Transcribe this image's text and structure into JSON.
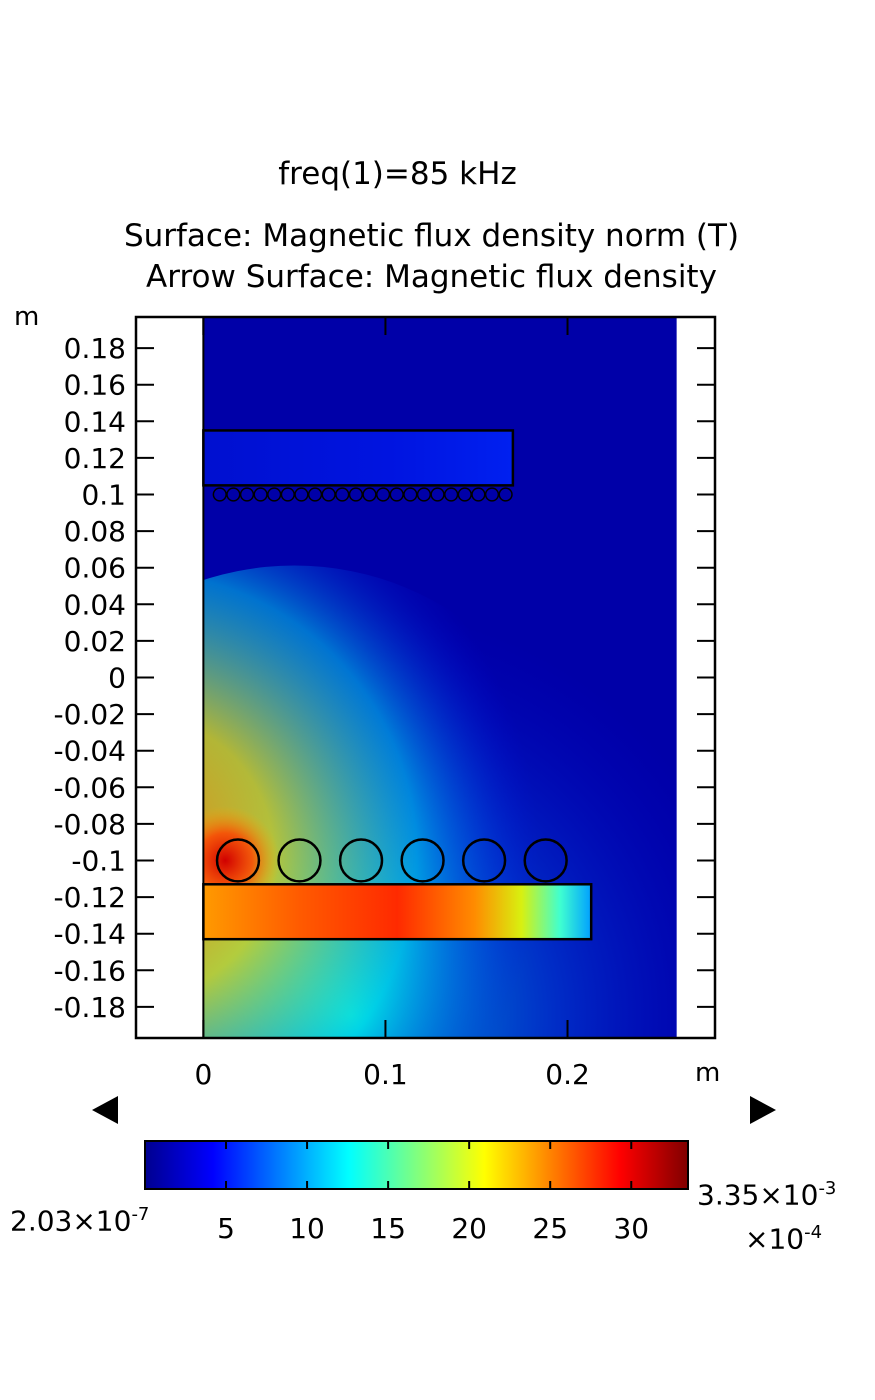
{
  "header": {
    "param_line": "freq(1)=85 kHz",
    "title_line1": "Surface: Magnetic flux density norm (T)",
    "title_line2": "Arrow Surface: Magnetic flux density"
  },
  "colors": {
    "field_low": "#0000A8",
    "field_high": "#800000",
    "colormap": "Rainbow (jet)"
  },
  "chart_data": {
    "type": "heatmap",
    "title": "Surface: Magnetic flux density norm (T)",
    "subtitle": "Arrow Surface: Magnetic flux density",
    "xlabel": "m",
    "ylabel": "m",
    "xlim": [
      -0.037,
      0.281
    ],
    "ylim": [
      -0.197,
      0.197
    ],
    "x_ticks": [
      0,
      0.1,
      0.2
    ],
    "x_tick_labels": [
      "0",
      "0.1",
      "0.2"
    ],
    "y_ticks": [
      0.18,
      0.16,
      0.14,
      0.12,
      0.1,
      0.08,
      0.06,
      0.04,
      0.02,
      0,
      -0.02,
      -0.04,
      -0.06,
      -0.08,
      -0.1,
      -0.12,
      -0.14,
      -0.16,
      -0.18
    ],
    "y_tick_labels": [
      "0.18",
      "0.16",
      "0.14",
      "0.12",
      "0.1",
      "0.08",
      "0.06",
      "0.04",
      "0.02",
      "0",
      "-0.02",
      "-0.04",
      "-0.06",
      "-0.08",
      "-0.1",
      "-0.12",
      "-0.14",
      "-0.16",
      "-0.18"
    ],
    "domain": {
      "x": [
        0,
        0.26
      ],
      "y": [
        -0.197,
        0.197
      ]
    },
    "geometry": {
      "top_plate": {
        "x": [
          0,
          0.17
        ],
        "y": [
          0.105,
          0.135
        ]
      },
      "top_coil": {
        "count": 22,
        "x_start": 0.009,
        "x_end": 0.166,
        "y": 0.1,
        "radius": 0.0035
      },
      "bottom_plate": {
        "x": [
          0,
          0.213
        ],
        "y": [
          -0.143,
          -0.113
        ]
      },
      "bottom_coil": {
        "count": 6,
        "x_start": 0.019,
        "x_end": 0.188,
        "y": -0.1,
        "radius": 0.0115
      }
    },
    "colorbar": {
      "min_label": "2.03×10",
      "min_exp": "-7",
      "max_label": "3.35×10",
      "max_exp": "-3",
      "multiplier": "×10",
      "multiplier_exp": "-4",
      "min": 0.002,
      "max": 33.5,
      "ticks": [
        5,
        10,
        15,
        20,
        25,
        30
      ],
      "tick_labels": [
        "5",
        "10",
        "15",
        "20",
        "25",
        "30"
      ]
    }
  }
}
